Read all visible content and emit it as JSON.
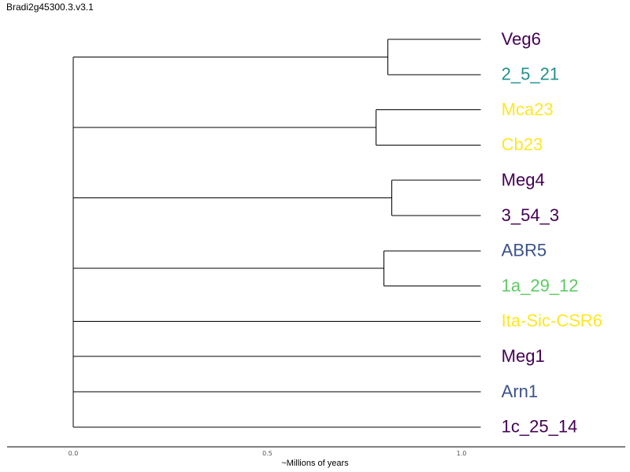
{
  "title": "Bradi2g45300.3.v3.1",
  "chart_data": {
    "type": "dendrogram",
    "xlabel": "~Millions of years",
    "xlim": [
      0.0,
      1.43
    ],
    "ticks": [
      {
        "value": 0.0,
        "label": "0.0"
      },
      {
        "value": 0.5,
        "label": "0.5"
      },
      {
        "value": 1.0,
        "label": "1.0"
      }
    ],
    "leaf_depth": 1.05,
    "leaves": [
      {
        "name": "Veg6",
        "color": "#440154"
      },
      {
        "name": "2_5_21",
        "color": "#21918c"
      },
      {
        "name": "Mca23",
        "color": "#fde725"
      },
      {
        "name": "Cb23",
        "color": "#fde725"
      },
      {
        "name": "Meg4",
        "color": "#440154"
      },
      {
        "name": "3_54_3",
        "color": "#440154"
      },
      {
        "name": "ABR5",
        "color": "#3b528b"
      },
      {
        "name": "1a_29_12",
        "color": "#5ec962"
      },
      {
        "name": "Ita-Sic-CSR6",
        "color": "#fde725"
      },
      {
        "name": "Meg1",
        "color": "#440154"
      },
      {
        "name": "Arn1",
        "color": "#3b528b"
      },
      {
        "name": "1c_25_14",
        "color": "#440154"
      }
    ],
    "clades": [
      {
        "leaves": [
          0,
          1
        ],
        "depth": 0.81
      },
      {
        "leaves": [
          2,
          3
        ],
        "depth": 0.78
      },
      {
        "leaves": [
          4,
          5
        ],
        "depth": 0.82
      },
      {
        "leaves": [
          6,
          7
        ],
        "depth": 0.8
      }
    ],
    "root_depth": 0.0
  }
}
